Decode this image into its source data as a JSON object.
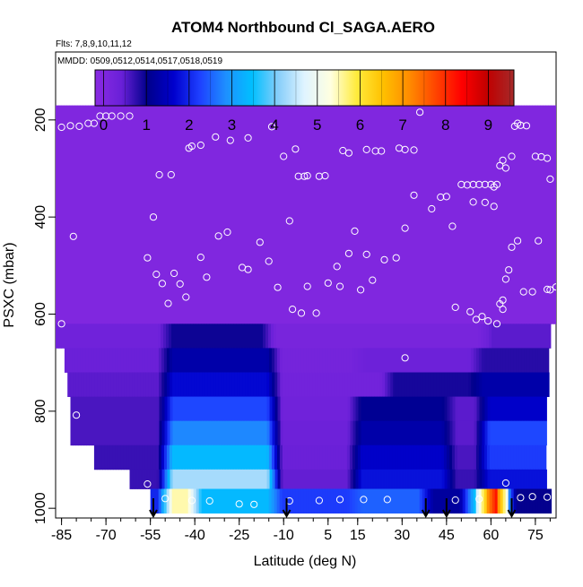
{
  "chart_data": {
    "type": "heatmap",
    "title": "ATOM4 Northbound Cl_SAGA.AERO",
    "flights_note": "Flts: 7,8,9,10,11,12",
    "dates_note": "MMDD: 0509,0512,0514,0517,0518,0519",
    "xlabel": "Latitude (deg N)",
    "ylabel": "PSXC (mbar)",
    "xlim": [
      -87,
      82
    ],
    "ylim": [
      1020,
      60
    ],
    "y_reversed": true,
    "x_ticks": [
      "-85",
      "-70",
      "-55",
      "-40",
      "-25",
      "-10",
      "5",
      "15",
      "30",
      "45",
      "60",
      "75"
    ],
    "x_tick_values": [
      -85,
      -70,
      -55,
      -40,
      -25,
      -10,
      5,
      15,
      30,
      45,
      60,
      75
    ],
    "x_minor_step": 5,
    "y_ticks": [
      "200",
      "400",
      "600",
      "800",
      "1000"
    ],
    "y_tick_values": [
      200,
      400,
      600,
      800,
      1000
    ],
    "colorbar": {
      "ticks": [
        "0",
        "1",
        "2",
        "3",
        "4",
        "5",
        "6",
        "7",
        "8",
        "9"
      ],
      "tick_values": [
        0,
        1,
        2,
        3,
        4,
        5,
        6,
        7,
        8,
        9
      ],
      "range": [
        -0.2,
        9.6
      ],
      "colors": [
        "#8a2be2",
        "#6a20d8",
        "#00008b",
        "#0000cd",
        "#1e40ff",
        "#1e90ff",
        "#00bfff",
        "#87cefa",
        "#e0f4ff",
        "#ffffe0",
        "#ffeb3b",
        "#ffc000",
        "#ff8c00",
        "#ff4500",
        "#ff0000",
        "#c00000",
        "#a52a2a"
      ]
    },
    "arrow_latitudes": [
      -54,
      -9,
      38,
      45,
      67
    ],
    "fill_rows": [
      {
        "p0": 170,
        "p1": 620,
        "segs": [
          [
            -87,
            82,
            0
          ]
        ]
      },
      {
        "p0": 620,
        "p1": 670,
        "segs": [
          [
            -87,
            -50,
            0.3
          ],
          [
            -50,
            -15,
            0.95
          ],
          [
            -15,
            58,
            0.15
          ],
          [
            58,
            80,
            0.5
          ]
        ]
      },
      {
        "p0": 670,
        "p1": 720,
        "segs": [
          [
            -84,
            -50,
            0.4
          ],
          [
            -50,
            -13,
            1.3
          ],
          [
            -13,
            15,
            0.2
          ],
          [
            15,
            55,
            0.35
          ],
          [
            55,
            80,
            0.8
          ]
        ]
      },
      {
        "p0": 720,
        "p1": 770,
        "segs": [
          [
            -83,
            -50,
            0.5
          ],
          [
            -50,
            -13,
            1.7
          ],
          [
            -13,
            25,
            0.25
          ],
          [
            25,
            55,
            0.9
          ],
          [
            55,
            80,
            1.3
          ]
        ]
      },
      {
        "p0": 770,
        "p1": 820,
        "segs": [
          [
            -82,
            -50,
            0.6
          ],
          [
            -50,
            -13,
            2.3
          ],
          [
            -13,
            14,
            0.3
          ],
          [
            14,
            46,
            1.1
          ],
          [
            46,
            57,
            0.5
          ],
          [
            57,
            79,
            1.6
          ]
        ]
      },
      {
        "p0": 820,
        "p1": 870,
        "segs": [
          [
            -82,
            -50,
            0.6
          ],
          [
            -50,
            -13,
            2.8
          ],
          [
            -13,
            14,
            0.35
          ],
          [
            14,
            46,
            1.3
          ],
          [
            46,
            57,
            0.5
          ],
          [
            57,
            79,
            2.3
          ]
        ]
      },
      {
        "p0": 870,
        "p1": 920,
        "segs": [
          [
            -74,
            -50,
            0.7
          ],
          [
            -50,
            -13,
            3.4
          ],
          [
            -13,
            14,
            0.4
          ],
          [
            14,
            46,
            1.6
          ],
          [
            46,
            57,
            0.6
          ],
          [
            57,
            79,
            2.2
          ]
        ]
      },
      {
        "p0": 920,
        "p1": 960,
        "segs": [
          [
            -62,
            -50,
            0.7
          ],
          [
            -50,
            -13,
            4.3
          ],
          [
            -13,
            14,
            0.45
          ],
          [
            14,
            46,
            1.8
          ],
          [
            46,
            57,
            0.7
          ],
          [
            57,
            79,
            1.8
          ]
        ]
      },
      {
        "p0": 960,
        "p1": 1010,
        "segs": [
          [
            -55,
            -50,
            2.0
          ],
          [
            -50,
            -40,
            5.5
          ],
          [
            -40,
            -13,
            3.4
          ],
          [
            -13,
            14,
            2.2
          ],
          [
            14,
            38,
            2.5
          ],
          [
            38,
            52,
            1.2
          ],
          [
            52,
            56,
            3.5
          ],
          [
            56,
            60,
            6.5
          ],
          [
            60,
            63,
            8.5
          ],
          [
            63,
            66,
            5.0
          ],
          [
            66,
            80,
            1.0
          ]
        ]
      }
    ],
    "points": [
      [
        -85,
        215
      ],
      [
        -82,
        212
      ],
      [
        -76,
        207
      ],
      [
        -74,
        207
      ],
      [
        -72,
        192
      ],
      [
        -70,
        192
      ],
      [
        -68,
        192
      ],
      [
        -65,
        192
      ],
      [
        -62,
        192
      ],
      [
        -54,
        400
      ],
      [
        -56,
        484
      ],
      [
        -52,
        313
      ],
      [
        -48,
        313
      ],
      [
        -42,
        258
      ],
      [
        -41,
        254
      ],
      [
        -38,
        252
      ],
      [
        -33,
        235
      ],
      [
        -28,
        242
      ],
      [
        -22,
        237
      ],
      [
        -14,
        214
      ],
      [
        -10,
        275
      ],
      [
        -6,
        260
      ],
      [
        -5,
        316
      ],
      [
        -3,
        316
      ],
      [
        -2,
        315
      ],
      [
        2,
        316
      ],
      [
        4,
        315
      ],
      [
        10,
        263
      ],
      [
        12,
        268
      ],
      [
        18,
        261
      ],
      [
        21,
        264
      ],
      [
        23,
        264
      ],
      [
        29,
        258
      ],
      [
        31,
        261
      ],
      [
        34,
        262
      ],
      [
        -53,
        518
      ],
      [
        -51,
        537
      ],
      [
        -49,
        578
      ],
      [
        -47,
        516
      ],
      [
        -45,
        538
      ],
      [
        -43,
        565
      ],
      [
        -38,
        483
      ],
      [
        -36,
        524
      ],
      [
        -32,
        439
      ],
      [
        -29,
        431
      ],
      [
        -24,
        504
      ],
      [
        -22,
        508
      ],
      [
        -18,
        452
      ],
      [
        -15,
        491
      ],
      [
        -12,
        545
      ],
      [
        -8,
        408
      ],
      [
        -7,
        590
      ],
      [
        -4,
        598
      ],
      [
        -2,
        543
      ],
      [
        1,
        598
      ],
      [
        5,
        536
      ],
      [
        8,
        502
      ],
      [
        9,
        543
      ],
      [
        12,
        475
      ],
      [
        14,
        429
      ],
      [
        16,
        550
      ],
      [
        18,
        477
      ],
      [
        20,
        530
      ],
      [
        24,
        488
      ],
      [
        28,
        484
      ],
      [
        31,
        423
      ],
      [
        34,
        355
      ],
      [
        36,
        184
      ],
      [
        40,
        383
      ],
      [
        43,
        359
      ],
      [
        45,
        358
      ],
      [
        47,
        419
      ],
      [
        48,
        586
      ],
      [
        50,
        333
      ],
      [
        52,
        334
      ],
      [
        54,
        333
      ],
      [
        56,
        333
      ],
      [
        58,
        333
      ],
      [
        60,
        333
      ],
      [
        62,
        333
      ],
      [
        63,
        294
      ],
      [
        64,
        283
      ],
      [
        65,
        299
      ],
      [
        67,
        275
      ],
      [
        68,
        213
      ],
      [
        69,
        207
      ],
      [
        70,
        211
      ],
      [
        72,
        212
      ],
      [
        75,
        275
      ],
      [
        77,
        276
      ],
      [
        79,
        279
      ],
      [
        54,
        369
      ],
      [
        58,
        370
      ],
      [
        61,
        338
      ],
      [
        61,
        378
      ],
      [
        63,
        579
      ],
      [
        64,
        571
      ],
      [
        65,
        528
      ],
      [
        66,
        509
      ],
      [
        67,
        462
      ],
      [
        69,
        449
      ],
      [
        71,
        554
      ],
      [
        74,
        554
      ],
      [
        76,
        449
      ],
      [
        79,
        549
      ],
      [
        80,
        550
      ],
      [
        82,
        544
      ],
      [
        80,
        322
      ],
      [
        53,
        595
      ],
      [
        55,
        611
      ],
      [
        57,
        605
      ],
      [
        59,
        614
      ],
      [
        62,
        620
      ],
      [
        64,
        590
      ],
      [
        -56,
        950
      ],
      [
        -50,
        980
      ],
      [
        -41,
        984
      ],
      [
        -35,
        985
      ],
      [
        -25,
        991
      ],
      [
        -20,
        992
      ],
      [
        -8,
        985
      ],
      [
        2,
        984
      ],
      [
        9,
        982
      ],
      [
        17,
        982
      ],
      [
        25,
        982
      ],
      [
        31,
        690
      ],
      [
        48,
        983
      ],
      [
        56,
        981
      ],
      [
        65,
        948
      ],
      [
        70,
        978
      ],
      [
        74,
        976
      ],
      [
        79,
        977
      ],
      [
        -85,
        620
      ],
      [
        -81,
        440
      ],
      [
        -80,
        808
      ],
      [
        -79,
        213
      ]
    ]
  }
}
